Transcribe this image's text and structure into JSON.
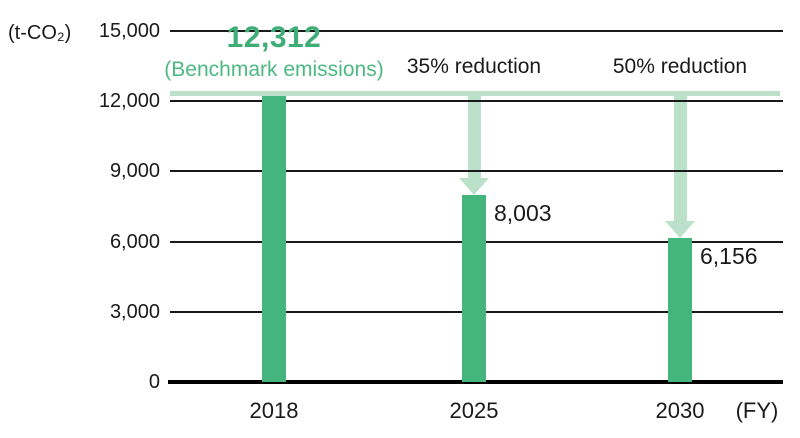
{
  "colors": {
    "bar_green": "#45B57E",
    "light_green": "#BCE1CA",
    "headline_green": "#3EAE76",
    "caption_green": "#4CB983",
    "grid_black": "#1A1A1A",
    "baseline_black": "#000000",
    "text_black": "#1A1A1A",
    "background": "#FFFFFF"
  },
  "chart_data": {
    "type": "bar",
    "unit_label": "(t-CO₂)",
    "fy_label": "(FY)",
    "categories": [
      "2018",
      "2025",
      "2030"
    ],
    "values": [
      12312,
      8003,
      6156
    ],
    "bar_value_labels": [
      null,
      "8,003",
      "6,156"
    ],
    "reduction_labels": [
      null,
      "35% reduction",
      "50% reduction"
    ],
    "benchmark": {
      "value": 12312,
      "headline": "12,312",
      "caption": "(Benchmark emissions)"
    },
    "y_ticks": [
      {
        "value": 0,
        "label": "0"
      },
      {
        "value": 3000,
        "label": "3,000"
      },
      {
        "value": 6000,
        "label": "6,000"
      },
      {
        "value": 9000,
        "label": "9,000"
      },
      {
        "value": 12000,
        "label": "12,000"
      },
      {
        "value": 15000,
        "label": "15,000"
      }
    ],
    "ylim": [
      0,
      15000
    ],
    "grid": true,
    "legend": null
  }
}
